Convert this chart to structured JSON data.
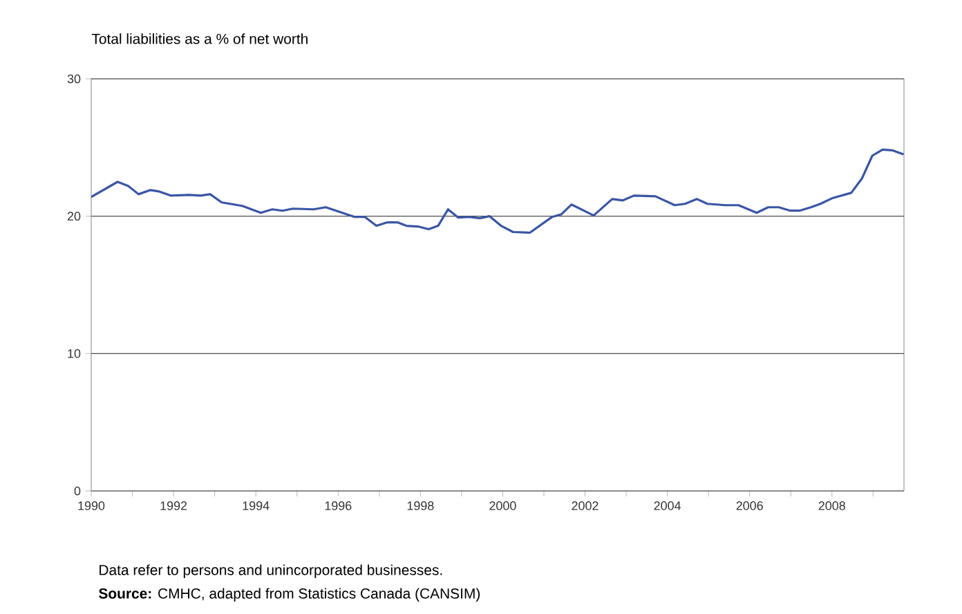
{
  "chart_data": {
    "type": "line",
    "title": "Total liabilities as a % of net worth",
    "annotations": [
      "Data refer to persons and unincorporated businesses.",
      "**Source:** CMHC, adapted from Statistics Canada (CANSIM)"
    ],
    "x": [
      1990.0,
      1990.64,
      1990.9,
      1991.15,
      1991.43,
      1991.65,
      1991.93,
      1992.38,
      1992.66,
      1992.89,
      1993.17,
      1993.67,
      1994.12,
      1994.4,
      1994.65,
      1994.9,
      1995.4,
      1995.7,
      1996.1,
      1996.4,
      1996.65,
      1996.93,
      1997.2,
      1997.44,
      1997.66,
      1997.94,
      1998.2,
      1998.43,
      1998.67,
      1998.92,
      1999.18,
      1999.44,
      1999.68,
      1999.96,
      2000.25,
      2000.66,
      2001.2,
      2001.43,
      2001.67,
      2002.21,
      2002.66,
      2002.92,
      2003.19,
      2003.71,
      2004.18,
      2004.43,
      2004.72,
      2004.97,
      2005.41,
      2005.73,
      2006.17,
      2006.45,
      2006.71,
      2006.99,
      2007.21,
      2007.49,
      2007.72,
      2008.0,
      2008.47,
      2008.73,
      2008.98,
      2009.23,
      2009.46,
      2009.74
    ],
    "series": [
      {
        "color": "#3a55a4",
        "values": [
          21.4,
          22.5,
          22.2,
          21.6,
          21.9,
          21.8,
          21.5,
          21.55,
          21.5,
          21.6,
          21.0,
          20.75,
          20.25,
          20.5,
          20.4,
          20.55,
          20.5,
          20.65,
          20.25,
          19.95,
          19.95,
          19.3,
          19.55,
          19.55,
          19.3,
          19.25,
          19.05,
          19.3,
          20.5,
          19.9,
          19.95,
          19.85,
          20.0,
          19.3,
          18.85,
          18.8,
          19.95,
          20.15,
          20.85,
          20.05,
          21.25,
          21.15,
          21.5,
          21.45,
          20.8,
          20.9,
          21.25,
          20.9,
          20.8,
          20.8,
          20.25,
          20.65,
          20.65,
          20.4,
          20.4,
          20.65,
          20.9,
          21.3,
          21.7,
          22.75,
          24.4,
          24.85,
          24.8,
          24.5
        ]
      }
    ],
    "xlim": [
      1990,
      2009.75
    ],
    "xticks": [
      1990,
      {
        "value": 1991,
        "label": null
      },
      1992,
      {
        "value": 1993,
        "label": null
      },
      1994,
      {
        "value": 1995,
        "label": null
      },
      1996,
      {
        "value": 1997,
        "label": null
      },
      1998,
      {
        "value": 1999,
        "label": null
      },
      2000,
      {
        "value": 2001,
        "label": null
      },
      2002,
      {
        "value": 2003,
        "label": null
      },
      2004,
      {
        "value": 2005,
        "label": null
      },
      2006,
      {
        "value": 2007,
        "label": null
      },
      2008,
      {
        "value": 2009,
        "label": null
      }
    ],
    "ylim": [
      0,
      30
    ],
    "yticks": [
      0,
      10,
      20,
      30
    ],
    "grid": "y",
    "line_style": "solid"
  }
}
